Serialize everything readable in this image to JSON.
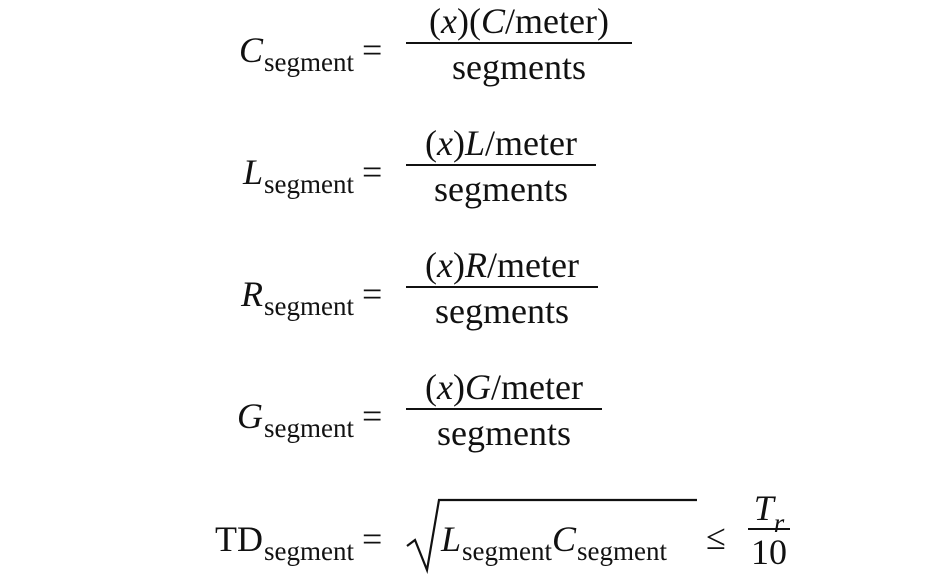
{
  "equations": [
    {
      "lhs_var": "C",
      "lhs_sub": "segment",
      "equals": "=",
      "numerator": "(x)(C/meter)",
      "num_parts": {
        "x_open": "(",
        "x": "x",
        "x_close": ")(",
        "var": "C",
        "rest": "/meter)"
      },
      "denominator": "segments"
    },
    {
      "lhs_var": "L",
      "lhs_sub": "segment",
      "equals": "=",
      "num_parts": {
        "x_open": "(",
        "x": "x",
        "x_close": ")",
        "var": "L",
        "rest": "/meter"
      },
      "denominator": "segments"
    },
    {
      "lhs_var": "R",
      "lhs_sub": "segment",
      "equals": "=",
      "num_parts": {
        "x_open": "(",
        "x": "x",
        "x_close": ")",
        "var": "R",
        "rest": "/meter"
      },
      "denominator": "segments"
    },
    {
      "lhs_var": "G",
      "lhs_sub": "segment",
      "equals": "=",
      "num_parts": {
        "x_open": "(",
        "x": "x",
        "x_close": ")",
        "var": "G",
        "rest": "/meter"
      },
      "denominator": "segments"
    }
  ],
  "td": {
    "lhs": "TD",
    "lhs_sub": "segment",
    "equals": "=",
    "radicand_var1": "L",
    "radicand_sub1": "segment",
    "radicand_var2": "C",
    "radicand_sub2": "segment",
    "leq": "≤",
    "frac_num_var": "T",
    "frac_num_sub": "r",
    "frac_den": "10"
  }
}
